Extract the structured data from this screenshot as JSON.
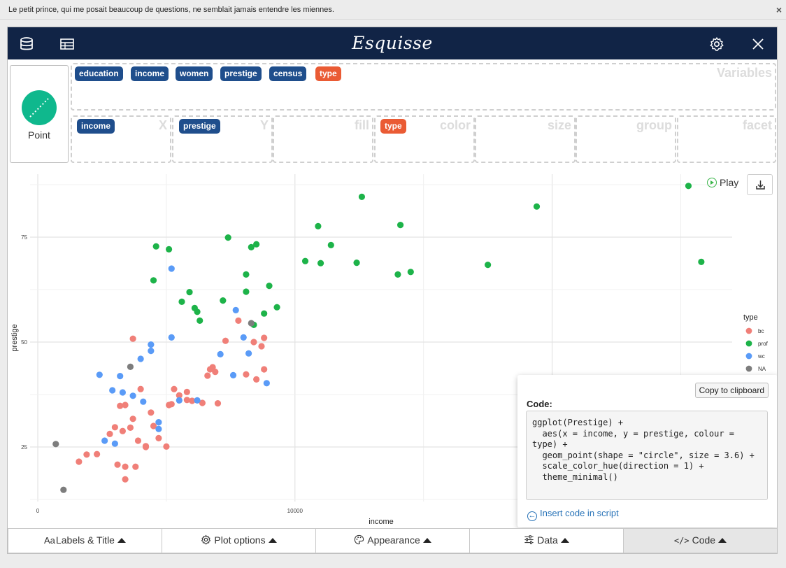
{
  "topbar": {
    "text": "Le petit prince, qui me posait beaucoup de questions, ne semblait jamais entendre les miennes.",
    "close_glyph": "×"
  },
  "navbar": {
    "title": "Esquisse",
    "icons": [
      "database-icon",
      "table-icon",
      "gear-icon",
      "close-icon"
    ]
  },
  "geom": {
    "label": "Point",
    "color": "#0fb88d"
  },
  "variables": {
    "label": "Variables",
    "items": [
      {
        "name": "education",
        "color": "#1f4e8c"
      },
      {
        "name": "income",
        "color": "#1f4e8c"
      },
      {
        "name": "women",
        "color": "#1f4e8c"
      },
      {
        "name": "prestige",
        "color": "#1f4e8c"
      },
      {
        "name": "census",
        "color": "#1f4e8c"
      },
      {
        "name": "type",
        "color": "#ea5b34"
      }
    ]
  },
  "mapping": {
    "x": {
      "label": "X",
      "value": "income"
    },
    "y": {
      "label": "Y",
      "value": "prestige"
    },
    "fill": {
      "label": "fill"
    },
    "color": {
      "label": "color",
      "value": "type"
    },
    "size": {
      "label": "size"
    },
    "group": {
      "label": "group"
    },
    "facet": {
      "label": "facet"
    }
  },
  "play": {
    "label": "Play"
  },
  "chart_data": {
    "type": "scatter",
    "xlabel": "income",
    "ylabel": "prestige",
    "xlim": [
      -300,
      27000
    ],
    "ylim": [
      12,
      90
    ],
    "x_ticks": [
      0,
      10000
    ],
    "y_ticks": [
      25,
      50,
      75
    ],
    "grid": true,
    "legend": {
      "title": "type",
      "placement": "right"
    },
    "series": [
      {
        "name": "bc",
        "color": "#f07f78",
        "points": [
          [
            3700,
            50.8
          ],
          [
            5100,
            35.0
          ],
          [
            3000,
            29.7
          ],
          [
            6600,
            42.0
          ],
          [
            5800,
            36.2
          ],
          [
            6000,
            36.0
          ],
          [
            6400,
            35.5
          ],
          [
            7000,
            35.4
          ],
          [
            5300,
            38.8
          ],
          [
            5500,
            37.3
          ],
          [
            8800,
            51.0
          ],
          [
            8400,
            50.0
          ],
          [
            7300,
            50.3
          ],
          [
            8700,
            49.0
          ],
          [
            6900,
            42.9
          ],
          [
            6800,
            44.0
          ],
          [
            6700,
            43.5
          ],
          [
            5200,
            35.2
          ],
          [
            8100,
            42.3
          ],
          [
            8500,
            41.1
          ],
          [
            8800,
            43.5
          ],
          [
            4000,
            38.8
          ],
          [
            3400,
            35.0
          ],
          [
            3700,
            31.7
          ],
          [
            3600,
            29.6
          ],
          [
            3200,
            34.8
          ],
          [
            4400,
            33.2
          ],
          [
            4500,
            30.0
          ],
          [
            3900,
            26.5
          ],
          [
            4700,
            27.1
          ],
          [
            2800,
            28.1
          ],
          [
            3300,
            28.8
          ],
          [
            3100,
            20.8
          ],
          [
            3800,
            20.3
          ],
          [
            4200,
            25.2
          ],
          [
            4200,
            25.0
          ],
          [
            5000,
            25.1
          ],
          [
            2300,
            23.3
          ],
          [
            1900,
            23.2
          ],
          [
            1600,
            21.5
          ],
          [
            3400,
            20.3
          ],
          [
            3400,
            17.3
          ],
          [
            5800,
            38.1
          ],
          [
            7800,
            55.1
          ]
        ]
      },
      {
        "name": "prof",
        "color": "#1db349",
        "points": [
          [
            4600,
            72.8
          ],
          [
            5100,
            72.1
          ],
          [
            7400,
            74.9
          ],
          [
            8300,
            72.6
          ],
          [
            8500,
            73.3
          ],
          [
            10400,
            69.3
          ],
          [
            10900,
            77.6
          ],
          [
            11000,
            68.8
          ],
          [
            11400,
            73.1
          ],
          [
            12400,
            68.9
          ],
          [
            12600,
            84.6
          ],
          [
            14100,
            77.9
          ],
          [
            14000,
            66.1
          ],
          [
            14500,
            66.7
          ],
          [
            17500,
            68.4
          ],
          [
            19400,
            82.3
          ],
          [
            25300,
            87.2
          ],
          [
            25800,
            69.1
          ],
          [
            4500,
            64.7
          ],
          [
            5600,
            59.6
          ],
          [
            5900,
            61.9
          ],
          [
            6200,
            57.2
          ],
          [
            6100,
            58.1
          ],
          [
            6300,
            55.1
          ],
          [
            7200,
            59.9
          ],
          [
            8100,
            66.1
          ],
          [
            8100,
            62.0
          ],
          [
            9000,
            63.4
          ],
          [
            9300,
            58.3
          ],
          [
            8800,
            56.8
          ],
          [
            8400,
            54.1
          ]
        ]
      },
      {
        "name": "wc",
        "color": "#5a9bf7",
        "points": [
          [
            5200,
            67.5
          ],
          [
            4400,
            49.4
          ],
          [
            5200,
            51.1
          ],
          [
            7700,
            57.6
          ],
          [
            8000,
            51.1
          ],
          [
            8200,
            47.3
          ],
          [
            7100,
            47.1
          ],
          [
            4400,
            47.9
          ],
          [
            4000,
            46.0
          ],
          [
            2400,
            42.2
          ],
          [
            3200,
            41.9
          ],
          [
            2900,
            38.5
          ],
          [
            3300,
            38.0
          ],
          [
            3700,
            37.2
          ],
          [
            4100,
            35.8
          ],
          [
            5500,
            36.1
          ],
          [
            6200,
            36.1
          ],
          [
            7600,
            42.1
          ],
          [
            8900,
            40.2
          ],
          [
            4700,
            30.9
          ],
          [
            4700,
            29.3
          ],
          [
            3000,
            25.8
          ],
          [
            2600,
            26.5
          ]
        ]
      },
      {
        "name": "NA",
        "color": "#7d7d7d",
        "points": [
          [
            3600,
            44.1
          ],
          [
            8300,
            54.5
          ],
          [
            700,
            25.7
          ],
          [
            1000,
            14.8
          ]
        ]
      }
    ]
  },
  "code_panel": {
    "copy_label": "Copy to clipboard",
    "title": "Code:",
    "code": "ggplot(Prestige) +\n  aes(x = income, y = prestige, colour = type) +\n  geom_point(shape = \"circle\", size = 3.6) +\n  scale_color_hue(direction = 1) +\n  theme_minimal()",
    "insert_label": "Insert code in script"
  },
  "bottom_bar": [
    {
      "label": "Labels & Title",
      "icon": "Aa"
    },
    {
      "label": "Plot options",
      "icon": "gear-icon"
    },
    {
      "label": "Appearance",
      "icon": "palette-icon"
    },
    {
      "label": "Data",
      "icon": "sliders-icon"
    },
    {
      "label": "Code",
      "icon": "code-icon"
    }
  ]
}
